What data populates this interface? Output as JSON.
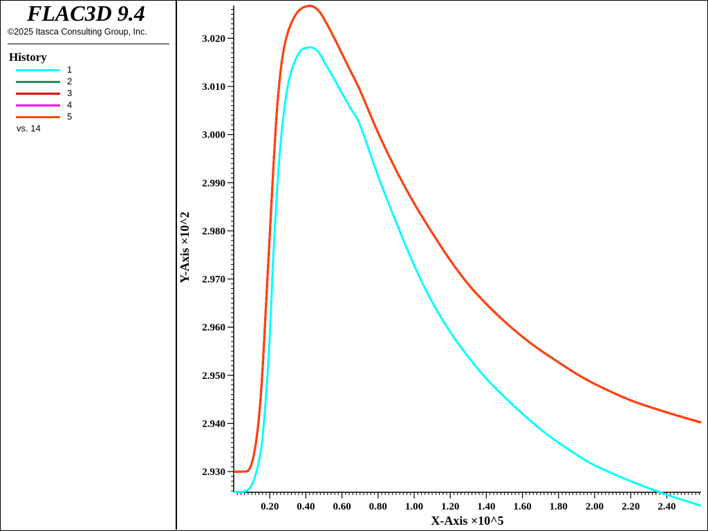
{
  "app": {
    "title": "FLAC3D 9.4",
    "copyright": "©2025 Itasca Consulting Group, Inc."
  },
  "legend": {
    "heading": "History",
    "vs_label": "vs. 14",
    "entries": [
      {
        "label": "1",
        "color": "#00ffff"
      },
      {
        "label": "2",
        "color": "#2e8b57"
      },
      {
        "label": "3",
        "color": "#e00000"
      },
      {
        "label": "4",
        "color": "#ff00ff"
      },
      {
        "label": "5",
        "color": "#ff4500"
      }
    ]
  },
  "chart_data": {
    "type": "line",
    "xlabel": "X-Axis ×10^5",
    "ylabel": "Y-Axis ×10^2",
    "xlim": [
      0.0,
      2.59
    ],
    "ylim": [
      2.9257,
      3.0268
    ],
    "xticks": [
      0.2,
      0.4,
      0.6,
      0.8,
      1.0,
      1.2,
      1.4,
      1.6,
      1.8,
      2.0,
      2.2,
      2.4
    ],
    "xtick_labels": [
      "0.20",
      "0.40",
      "0.60",
      "0.80",
      "1.00",
      "1.20",
      "1.40",
      "1.60",
      "1.80",
      "2.00",
      "2.20",
      "2.40"
    ],
    "yticks": [
      2.93,
      2.94,
      2.95,
      2.96,
      2.97,
      2.98,
      2.99,
      3.0,
      3.01,
      3.02
    ],
    "ytick_labels": [
      "2.930",
      "2.940",
      "2.950",
      "2.960",
      "2.970",
      "2.980",
      "2.990",
      "3.000",
      "3.010",
      "3.020"
    ],
    "series": [
      {
        "name": "1",
        "color": "#00ffff",
        "x": [
          0.0,
          0.05,
          0.08,
          0.1,
          0.12,
          0.14,
          0.16,
          0.18,
          0.2,
          0.22,
          0.24,
          0.26,
          0.28,
          0.3,
          0.32,
          0.34,
          0.36,
          0.38,
          0.4,
          0.42,
          0.43,
          0.44,
          0.46,
          0.48,
          0.5,
          0.55,
          0.6,
          0.65,
          0.7,
          0.8,
          0.9,
          1.0,
          1.1,
          1.2,
          1.3,
          1.4,
          1.5,
          1.6,
          1.7,
          1.8,
          1.9,
          2.0,
          2.2,
          2.4,
          2.59
        ],
        "y": [
          2.9258,
          2.9258,
          2.9262,
          2.9272,
          2.9292,
          2.9322,
          2.9372,
          2.9462,
          2.9582,
          2.9752,
          2.9882,
          2.9982,
          3.0052,
          3.0102,
          3.0132,
          3.0153,
          3.0168,
          3.0177,
          3.018,
          3.0181,
          3.0181,
          3.018,
          3.0175,
          3.0166,
          3.0152,
          3.012,
          3.0086,
          3.0053,
          3.002,
          2.9914,
          2.9818,
          2.9728,
          2.9652,
          2.959,
          2.9538,
          2.9493,
          2.9455,
          2.942,
          2.9388,
          2.936,
          2.9335,
          2.9313,
          2.928,
          2.9252,
          2.9229
        ]
      },
      {
        "name": "2",
        "color": "#2e8b57",
        "x": [
          0.0,
          0.05,
          0.08,
          0.1,
          0.12,
          0.14,
          0.16,
          0.18,
          0.2,
          0.22,
          0.24,
          0.26,
          0.28,
          0.3,
          0.32,
          0.34,
          0.36,
          0.38,
          0.4,
          0.42,
          0.43,
          0.44,
          0.46,
          0.48,
          0.5,
          0.55,
          0.6,
          0.65,
          0.7,
          0.8,
          0.9,
          1.0,
          1.1,
          1.2,
          1.3,
          1.4,
          1.5,
          1.6,
          1.7,
          1.8,
          1.9,
          2.0,
          2.2,
          2.4,
          2.59
        ],
        "y": [
          2.93,
          2.93,
          2.9302,
          2.9317,
          2.9352,
          2.9412,
          2.9512,
          2.9652,
          2.9792,
          2.9932,
          3.0052,
          3.0132,
          3.0182,
          3.0212,
          3.0232,
          3.0247,
          3.0257,
          3.0263,
          3.0266,
          3.0267,
          3.0267,
          3.0266,
          3.0261,
          3.0253,
          3.0241,
          3.0206,
          3.0168,
          3.013,
          3.0092,
          3.0004,
          2.9926,
          2.9857,
          2.9796,
          2.9739,
          2.9689,
          2.9648,
          2.9612,
          2.958,
          2.9552,
          2.9527,
          2.9503,
          2.9482,
          2.9448,
          2.9423,
          2.9402
        ]
      },
      {
        "name": "3",
        "color": "#e00000",
        "x": [
          0.0,
          0.05,
          0.08,
          0.1,
          0.12,
          0.14,
          0.16,
          0.18,
          0.2,
          0.22,
          0.24,
          0.26,
          0.28,
          0.3,
          0.32,
          0.34,
          0.36,
          0.38,
          0.4,
          0.42,
          0.43,
          0.44,
          0.46,
          0.48,
          0.5,
          0.55,
          0.6,
          0.65,
          0.7,
          0.8,
          0.9,
          1.0,
          1.1,
          1.2,
          1.3,
          1.4,
          1.5,
          1.6,
          1.7,
          1.8,
          1.9,
          2.0,
          2.2,
          2.4,
          2.59
        ],
        "y": [
          2.93,
          2.93,
          2.9302,
          2.9317,
          2.9352,
          2.9412,
          2.9512,
          2.9652,
          2.9792,
          2.9932,
          3.0052,
          3.0132,
          3.0182,
          3.0212,
          3.0232,
          3.0247,
          3.0257,
          3.0263,
          3.0266,
          3.0267,
          3.0267,
          3.0266,
          3.0261,
          3.0253,
          3.0241,
          3.0206,
          3.0168,
          3.013,
          3.0092,
          3.0004,
          2.9926,
          2.9857,
          2.9796,
          2.9739,
          2.9689,
          2.9648,
          2.9612,
          2.958,
          2.9552,
          2.9527,
          2.9503,
          2.9482,
          2.9448,
          2.9423,
          2.9402
        ]
      },
      {
        "name": "4",
        "color": "#ff00ff",
        "x": [
          0.0,
          0.05,
          0.08,
          0.1,
          0.12,
          0.14,
          0.16,
          0.18,
          0.2,
          0.22,
          0.24,
          0.26,
          0.28,
          0.3,
          0.32,
          0.34,
          0.36,
          0.38,
          0.4,
          0.42,
          0.43,
          0.44,
          0.46,
          0.48,
          0.5,
          0.55,
          0.6,
          0.65,
          0.7,
          0.8,
          0.9,
          1.0,
          1.1,
          1.2,
          1.3,
          1.4,
          1.5,
          1.6,
          1.7,
          1.8,
          1.9,
          2.0,
          2.2,
          2.4,
          2.59
        ],
        "y": [
          2.93,
          2.93,
          2.9302,
          2.9317,
          2.9352,
          2.9412,
          2.9512,
          2.9652,
          2.9792,
          2.9932,
          3.0052,
          3.0132,
          3.0182,
          3.0212,
          3.0232,
          3.0247,
          3.0257,
          3.0263,
          3.0266,
          3.0267,
          3.0267,
          3.0266,
          3.0261,
          3.0253,
          3.0241,
          3.0206,
          3.0168,
          3.013,
          3.0092,
          3.0004,
          2.9926,
          2.9857,
          2.9796,
          2.9739,
          2.9689,
          2.9648,
          2.9612,
          2.958,
          2.9552,
          2.9527,
          2.9503,
          2.9482,
          2.9448,
          2.9423,
          2.9402
        ]
      },
      {
        "name": "5",
        "color": "#ff4500",
        "x": [
          0.0,
          0.05,
          0.08,
          0.1,
          0.12,
          0.14,
          0.16,
          0.18,
          0.2,
          0.22,
          0.24,
          0.26,
          0.28,
          0.3,
          0.32,
          0.34,
          0.36,
          0.38,
          0.4,
          0.42,
          0.43,
          0.44,
          0.46,
          0.48,
          0.5,
          0.55,
          0.6,
          0.65,
          0.7,
          0.8,
          0.9,
          1.0,
          1.1,
          1.2,
          1.3,
          1.4,
          1.5,
          1.6,
          1.7,
          1.8,
          1.9,
          2.0,
          2.2,
          2.4,
          2.59
        ],
        "y": [
          2.93,
          2.93,
          2.9302,
          2.9317,
          2.9352,
          2.9412,
          2.9512,
          2.9652,
          2.9792,
          2.9932,
          3.0052,
          3.0132,
          3.0182,
          3.0212,
          3.0232,
          3.0247,
          3.0257,
          3.0263,
          3.0266,
          3.0267,
          3.0267,
          3.0266,
          3.0261,
          3.0253,
          3.0241,
          3.0206,
          3.0168,
          3.013,
          3.0092,
          3.0004,
          2.9926,
          2.9857,
          2.9796,
          2.9739,
          2.9689,
          2.9648,
          2.9612,
          2.958,
          2.9552,
          2.9527,
          2.9503,
          2.9482,
          2.9448,
          2.9423,
          2.9402
        ]
      }
    ]
  }
}
